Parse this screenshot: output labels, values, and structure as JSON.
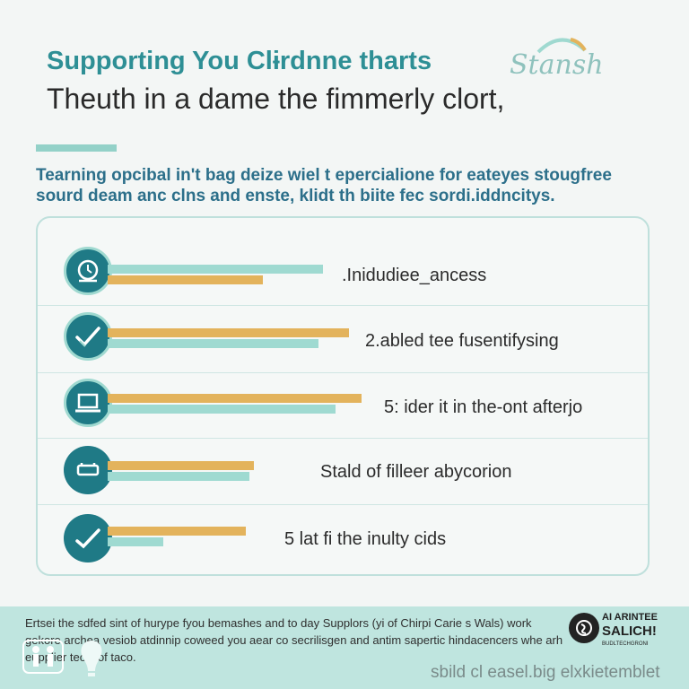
{
  "header": {
    "title": "Supporting You Clɨrdnne tharts",
    "brand_script": "Stansh",
    "subtitle": "Theuth in a dame the fimmerly clort,",
    "intro": "Tearning opcibal in't bag deize wiel t epercialione for eateyes stougfree sourd deam anc clns and enste, klidt th biite fec sordi.iddncitys."
  },
  "chart_data": {
    "type": "bar",
    "title": "",
    "xlabel": "",
    "ylabel": "",
    "xlim": [
      0,
      100
    ],
    "grid": false,
    "legend": "none",
    "categories": [
      ".Inidudiee_ancess",
      "2.abled tee fusentifysing",
      "5: ider it in the-ont afterjo",
      "Stald of filleer abycorion",
      "5 lat fi the inulty cids"
    ],
    "series": [
      {
        "color": "#9fdad1",
        "values": [
          50,
          49,
          53,
          33,
          13
        ]
      },
      {
        "color": "#e3b35c",
        "values": [
          36,
          56,
          59,
          34,
          32
        ]
      }
    ],
    "icons": [
      "clock-badge-icon",
      "checkmark-icon",
      "laptop-icon",
      "sofa-icon",
      "checkmark-icon"
    ]
  },
  "footer": {
    "text": "Ertsei the sdfed sint of hurype fyou bemashes and to day Supplors (yi of Chirpi Carie s Wals) work gekore archea vesiob atdinnip coweed you aear co secrilisgen and antim sapertic hindacencers whe arh eupplier teols of taco.",
    "caption": "sbild cl easel.big elxkietemblet",
    "brand_line1": "AI ARINTEE",
    "brand_line2": "SALICH!",
    "brand_tag": "BUDLTECHGRONI"
  }
}
